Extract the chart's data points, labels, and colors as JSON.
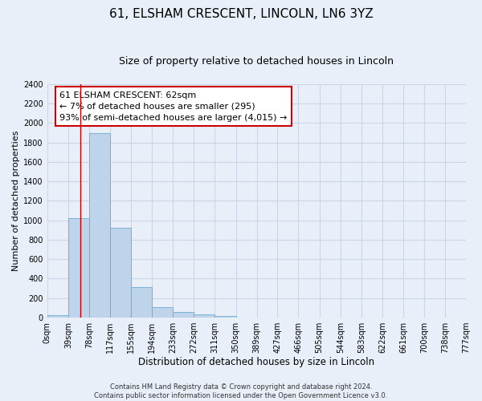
{
  "title": "61, ELSHAM CRESCENT, LINCOLN, LN6 3YZ",
  "subtitle": "Size of property relative to detached houses in Lincoln",
  "xlabel": "Distribution of detached houses by size in Lincoln",
  "ylabel": "Number of detached properties",
  "bin_labels": [
    "0sqm",
    "39sqm",
    "78sqm",
    "117sqm",
    "155sqm",
    "194sqm",
    "233sqm",
    "272sqm",
    "311sqm",
    "350sqm",
    "389sqm",
    "427sqm",
    "466sqm",
    "505sqm",
    "544sqm",
    "583sqm",
    "622sqm",
    "661sqm",
    "700sqm",
    "738sqm",
    "777sqm"
  ],
  "bin_edges": [
    0,
    39,
    78,
    117,
    155,
    194,
    233,
    272,
    311,
    350,
    389,
    427,
    466,
    505,
    544,
    583,
    622,
    661,
    700,
    738,
    777
  ],
  "bar_heights": [
    25,
    1020,
    1900,
    920,
    315,
    105,
    55,
    30,
    15,
    0,
    0,
    0,
    0,
    0,
    0,
    0,
    0,
    0,
    0,
    0
  ],
  "bar_color": "#bdd4ea",
  "bar_edge_color": "#6aaad4",
  "grid_color": "#c8d8e8",
  "background_color": "#e8eff8",
  "annotation_box_text": "61 ELSHAM CRESCENT: 62sqm\n← 7% of detached houses are smaller (295)\n93% of semi-detached houses are larger (4,015) →",
  "annotation_box_color": "#ffffff",
  "annotation_box_edge_color": "#cc0000",
  "red_line_x": 62,
  "ylim": [
    0,
    2400
  ],
  "yticks": [
    0,
    200,
    400,
    600,
    800,
    1000,
    1200,
    1400,
    1600,
    1800,
    2000,
    2200,
    2400
  ],
  "footer_line1": "Contains HM Land Registry data © Crown copyright and database right 2024.",
  "footer_line2": "Contains public sector information licensed under the Open Government Licence v3.0.",
  "title_fontsize": 11,
  "subtitle_fontsize": 9,
  "xlabel_fontsize": 8.5,
  "ylabel_fontsize": 8,
  "tick_fontsize": 7,
  "annotation_fontsize": 8,
  "footer_fontsize": 6
}
